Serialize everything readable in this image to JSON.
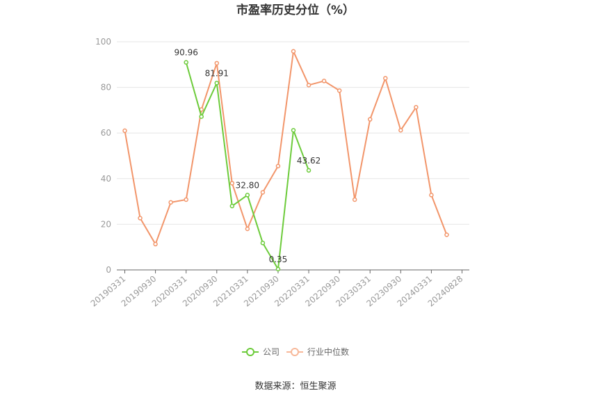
{
  "chart_data": {
    "type": "line",
    "title": "市盈率历史分位（%）",
    "categories": [
      "20190331",
      "20190630",
      "20190930",
      "20191231",
      "20200331",
      "20200630",
      "20200930",
      "20201231",
      "20210331",
      "20210630",
      "20210930",
      "20211231",
      "20220331",
      "20220630",
      "20220930",
      "20221231",
      "20230331",
      "20230630",
      "20230930",
      "20231231",
      "20240331",
      "20240630",
      "20240828"
    ],
    "x_tick_labels": [
      "20190331",
      "20190930",
      "20200331",
      "20200930",
      "20210331",
      "20210930",
      "20220331",
      "20220930",
      "20230331",
      "20230930",
      "20240331",
      "20240828"
    ],
    "ylim": [
      0,
      100
    ],
    "y_ticks": [
      0,
      20,
      40,
      60,
      80,
      100
    ],
    "grid": true,
    "legend_position": "bottom-center",
    "series": [
      {
        "name": "公司",
        "color": "#6ccb3a",
        "values": [
          null,
          null,
          null,
          null,
          90.96,
          67.2,
          81.91,
          28.0,
          32.8,
          11.8,
          0.35,
          61.2,
          43.62,
          null,
          null,
          null,
          null,
          null,
          null,
          null,
          null,
          null,
          null
        ],
        "labels": {
          "4": "90.96",
          "6": "81.91",
          "8": "32.80",
          "10": "0.35",
          "12": "43.62"
        }
      },
      {
        "name": "行业中位数",
        "color": "#f2956a",
        "values": [
          61.0,
          22.7,
          11.3,
          29.6,
          30.8,
          70.3,
          90.6,
          38.0,
          18.0,
          34.0,
          45.5,
          95.8,
          81.0,
          82.8,
          78.6,
          30.8,
          66.0,
          84.0,
          61.2,
          71.3,
          32.8,
          15.4,
          null
        ]
      }
    ]
  },
  "source": "数据来源：恒生聚源"
}
